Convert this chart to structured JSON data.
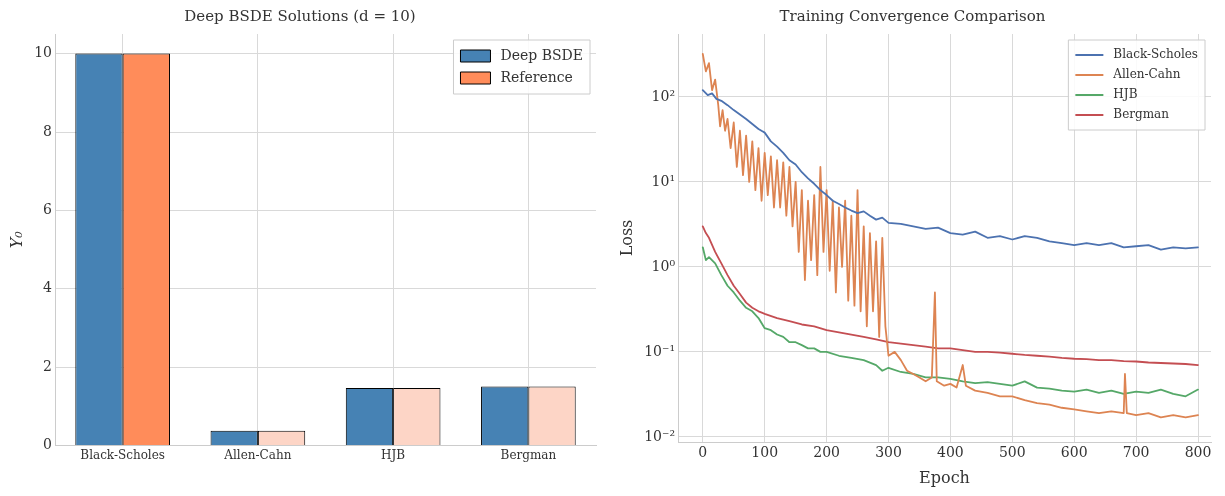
{
  "chart_data": [
    {
      "type": "bar",
      "title": "Deep BSDE Solutions (d = 10)",
      "ylabel": "Y₀",
      "categories": [
        "Black-Scholes",
        "Allen-Cahn",
        "HJB",
        "Bergman"
      ],
      "series": [
        {
          "name": "Deep BSDE",
          "color": "#4682b4",
          "values": [
            10.0,
            0.38,
            1.47,
            1.51
          ]
        },
        {
          "name": "Reference",
          "color": "#ff8c5a",
          "colors": [
            "#ff8c5a",
            "#fdd5c6",
            "#fdd5c6",
            "#fdd5c6"
          ],
          "values": [
            10.0,
            0.38,
            1.47,
            1.51
          ]
        }
      ],
      "ylim": [
        0,
        10.5
      ],
      "yticks": [
        0,
        2,
        4,
        6,
        8,
        10
      ],
      "grid": true,
      "legend": "top right"
    },
    {
      "type": "line",
      "title": "Training Convergence Comparison",
      "xlabel": "Epoch",
      "ylabel": "Loss",
      "log": "y",
      "marker": "none",
      "line_style": "solid",
      "xlim": [
        -40,
        821
      ],
      "xticks": [
        0,
        100,
        200,
        300,
        400,
        500,
        600,
        700,
        800
      ],
      "ylim": [
        0.0087,
        550
      ],
      "yticks": [
        {
          "value": 0.01,
          "label": "10⁻²"
        },
        {
          "value": 0.1,
          "label": "10⁻¹"
        },
        {
          "value": 1,
          "label": "10⁰"
        },
        {
          "value": 10,
          "label": "10¹"
        },
        {
          "value": 100,
          "label": "10²"
        }
      ],
      "grid": true,
      "legend": "top right",
      "series": [
        {
          "name": "Black-Scholes",
          "color": "#4c72b0",
          "x": [
            0,
            8,
            15,
            22,
            30,
            40,
            50,
            60,
            70,
            80,
            90,
            100,
            110,
            120,
            130,
            140,
            150,
            160,
            170,
            180,
            190,
            200,
            210,
            220,
            230,
            240,
            250,
            260,
            270,
            280,
            290,
            300,
            320,
            340,
            360,
            380,
            400,
            420,
            440,
            460,
            480,
            500,
            520,
            540,
            560,
            580,
            600,
            620,
            640,
            660,
            680,
            700,
            720,
            740,
            760,
            780,
            800
          ],
          "values": [
            120,
            105,
            110,
            95,
            90,
            80,
            70,
            62,
            55,
            48,
            42,
            38,
            30,
            26,
            22,
            18,
            16,
            13,
            11,
            9.5,
            8,
            7,
            6,
            5.5,
            5,
            4.6,
            4.3,
            4.5,
            4.0,
            3.6,
            3.8,
            3.3,
            3.2,
            3.0,
            2.8,
            2.9,
            2.5,
            2.4,
            2.6,
            2.2,
            2.3,
            2.1,
            2.3,
            2.2,
            2.0,
            1.9,
            1.8,
            1.9,
            1.8,
            1.9,
            1.7,
            1.75,
            1.8,
            1.6,
            1.7,
            1.65,
            1.7
          ]
        },
        {
          "name": "Allen-Cahn",
          "color": "#dd8452",
          "x": [
            0,
            5,
            10,
            15,
            20,
            25,
            28,
            32,
            36,
            40,
            45,
            50,
            55,
            60,
            65,
            70,
            75,
            80,
            85,
            90,
            95,
            100,
            105,
            110,
            115,
            120,
            125,
            130,
            135,
            140,
            145,
            150,
            155,
            160,
            165,
            170,
            175,
            180,
            185,
            190,
            195,
            200,
            205,
            210,
            215,
            220,
            225,
            230,
            235,
            240,
            245,
            250,
            255,
            260,
            265,
            270,
            275,
            280,
            285,
            290,
            295,
            300,
            310,
            320,
            330,
            340,
            350,
            360,
            370,
            375,
            378,
            390,
            400,
            410,
            420,
            425,
            440,
            460,
            480,
            500,
            520,
            540,
            560,
            580,
            600,
            620,
            640,
            660,
            680,
            682,
            685,
            700,
            720,
            740,
            760,
            780,
            800
          ],
          "values": [
            320,
            200,
            250,
            120,
            160,
            80,
            45,
            70,
            40,
            55,
            25,
            50,
            15,
            40,
            12,
            35,
            10,
            30,
            8,
            25,
            6,
            22,
            7,
            20,
            5,
            18,
            5,
            17,
            4,
            15,
            3,
            10,
            1.5,
            8,
            0.7,
            6,
            1.2,
            7,
            0.8,
            15,
            1.5,
            8,
            0.9,
            6,
            0.5,
            5,
            1.0,
            6,
            0.4,
            4,
            0.35,
            8,
            0.3,
            3,
            0.2,
            2.5,
            0.3,
            2,
            0.15,
            2.2,
            0.2,
            0.09,
            0.1,
            0.08,
            0.06,
            0.055,
            0.05,
            0.045,
            0.05,
            0.5,
            0.045,
            0.04,
            0.042,
            0.038,
            0.07,
            0.04,
            0.035,
            0.033,
            0.03,
            0.03,
            0.027,
            0.025,
            0.024,
            0.022,
            0.021,
            0.02,
            0.019,
            0.02,
            0.019,
            0.055,
            0.019,
            0.018,
            0.019,
            0.017,
            0.018,
            0.017,
            0.018
          ]
        },
        {
          "name": "HJB",
          "color": "#55a868",
          "x": [
            0,
            5,
            10,
            20,
            30,
            40,
            50,
            60,
            70,
            80,
            90,
            100,
            110,
            120,
            130,
            140,
            150,
            160,
            170,
            180,
            190,
            200,
            220,
            240,
            260,
            280,
            290,
            300,
            320,
            340,
            360,
            380,
            400,
            420,
            440,
            460,
            480,
            500,
            520,
            540,
            560,
            580,
            600,
            620,
            640,
            660,
            680,
            700,
            720,
            740,
            760,
            780,
            800
          ],
          "values": [
            1.7,
            1.2,
            1.3,
            1.1,
            0.8,
            0.6,
            0.5,
            0.4,
            0.33,
            0.3,
            0.25,
            0.19,
            0.18,
            0.16,
            0.15,
            0.13,
            0.13,
            0.12,
            0.11,
            0.11,
            0.1,
            0.1,
            0.09,
            0.085,
            0.08,
            0.07,
            0.06,
            0.065,
            0.058,
            0.055,
            0.05,
            0.05,
            0.048,
            0.045,
            0.043,
            0.044,
            0.042,
            0.04,
            0.045,
            0.038,
            0.037,
            0.035,
            0.034,
            0.036,
            0.033,
            0.035,
            0.032,
            0.034,
            0.033,
            0.036,
            0.032,
            0.03,
            0.036
          ]
        },
        {
          "name": "Bergman",
          "color": "#c44e52",
          "x": [
            0,
            5,
            10,
            20,
            30,
            40,
            50,
            60,
            70,
            80,
            90,
            100,
            120,
            140,
            160,
            180,
            200,
            220,
            240,
            260,
            280,
            300,
            320,
            340,
            360,
            380,
            400,
            420,
            440,
            460,
            480,
            500,
            520,
            540,
            560,
            580,
            600,
            620,
            640,
            660,
            680,
            700,
            720,
            740,
            760,
            780,
            800
          ],
          "values": [
            3.0,
            2.5,
            2.2,
            1.5,
            1.1,
            0.8,
            0.6,
            0.48,
            0.38,
            0.33,
            0.3,
            0.28,
            0.25,
            0.23,
            0.21,
            0.2,
            0.18,
            0.17,
            0.16,
            0.15,
            0.14,
            0.13,
            0.125,
            0.12,
            0.115,
            0.11,
            0.11,
            0.105,
            0.1,
            0.1,
            0.098,
            0.095,
            0.092,
            0.09,
            0.088,
            0.085,
            0.083,
            0.082,
            0.08,
            0.08,
            0.078,
            0.077,
            0.075,
            0.074,
            0.073,
            0.072,
            0.07
          ]
        }
      ]
    }
  ]
}
